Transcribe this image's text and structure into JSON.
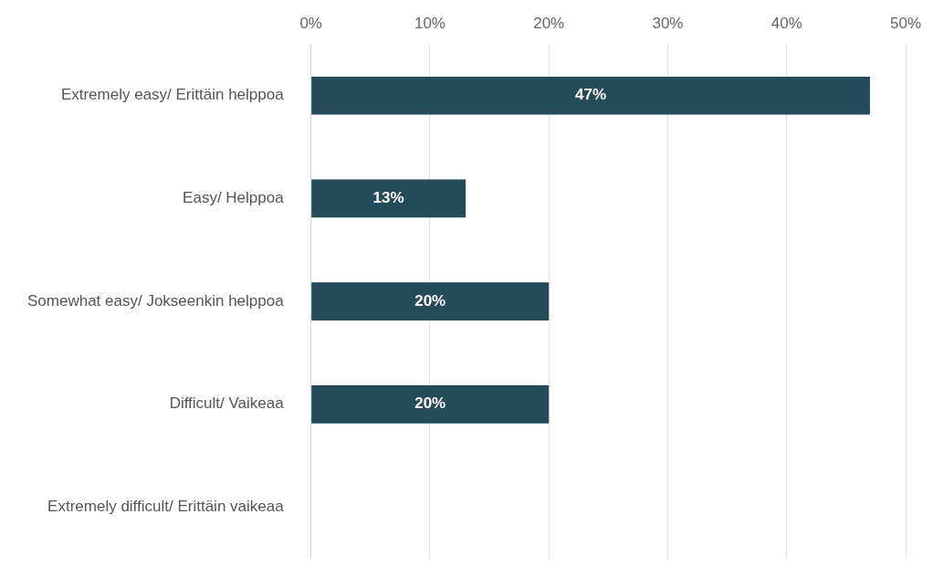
{
  "chart_data": {
    "type": "bar",
    "orientation": "horizontal",
    "categories": [
      "Extremely easy/ Erittäin helppoa",
      "Easy/ Helppoa",
      "Somewhat easy/ Jokseenkin helppoa",
      "Difficult/ Vaikeaa",
      "Extremely difficult/ Erittäin vaikeaa"
    ],
    "values": [
      47,
      13,
      20,
      20,
      0
    ],
    "value_labels": [
      "47%",
      "13%",
      "20%",
      "20%",
      null
    ],
    "color": "#234b5a",
    "xlim": [
      0,
      50
    ],
    "xticks": [
      {
        "value": 0,
        "label": "0%"
      },
      {
        "value": 10,
        "label": "10%"
      },
      {
        "value": 20,
        "label": "20%"
      },
      {
        "value": 30,
        "label": "30%"
      },
      {
        "value": 40,
        "label": "40%"
      },
      {
        "value": 50,
        "label": "50%"
      }
    ],
    "grid": "x",
    "legend": false
  }
}
